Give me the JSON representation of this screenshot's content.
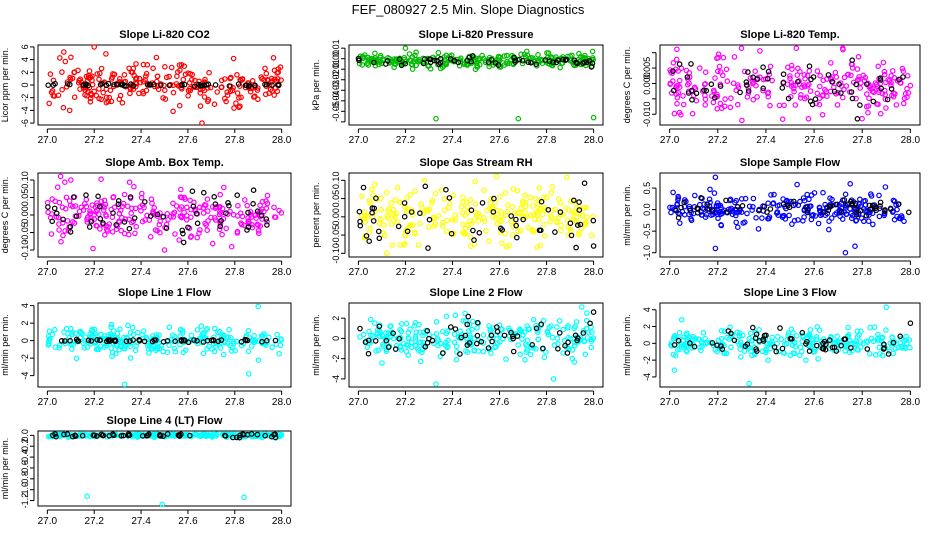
{
  "page": {
    "title": "FEF_080927  2.5 Min. Slope Diagnostics"
  },
  "chart_data": [
    {
      "type": "scatter",
      "title": "Slope Li-820 CO2",
      "ylabel": "Licor ppm per min.",
      "xlim": [
        26.96,
        28.04
      ],
      "xticks": [
        27.0,
        27.2,
        27.4,
        27.6,
        27.8,
        28.0
      ],
      "ylim": [
        -6.3,
        6.3
      ],
      "yticks": [
        -6,
        -4,
        -2,
        0,
        2,
        4,
        6
      ],
      "ytick_labels": [
        "-6",
        "-4",
        "-2",
        "0",
        "2",
        "4",
        "6"
      ],
      "series": [
        {
          "color": "#ff0000",
          "n": 260,
          "center": 0.0,
          "spread": 1.6,
          "outliers": [
            [
              27.07,
              5.2
            ],
            [
              27.2,
              6.0
            ],
            [
              27.66,
              -6.0
            ],
            [
              27.25,
              4.9
            ]
          ]
        },
        {
          "color": "#000000",
          "n": 55,
          "center": 0.0,
          "spread": 0.12,
          "outliers": []
        }
      ]
    },
    {
      "type": "scatter",
      "title": "Slope Li-820 Pressure",
      "ylabel": "kPa per min.",
      "xlim": [
        26.96,
        28.04
      ],
      "xticks": [
        27.0,
        27.2,
        27.4,
        27.6,
        27.8,
        28.0
      ],
      "ylim": [
        -0.063,
        0.013
      ],
      "yticks": [
        -0.06,
        -0.05,
        -0.04,
        -0.03,
        -0.02,
        -0.01,
        0.0,
        0.01
      ],
      "ytick_labels": [
        "",
        "-0.05",
        "-0.04",
        "-0.03",
        "-0.02",
        "-0.01",
        "0.00",
        "0.01"
      ],
      "series": [
        {
          "color": "#00bb00",
          "n": 260,
          "center": -0.002,
          "spread": 0.003,
          "outliers": [
            [
              27.33,
              -0.057
            ],
            [
              27.68,
              -0.057
            ],
            [
              28.0,
              -0.056
            ],
            [
              27.2,
              0.01
            ]
          ]
        },
        {
          "color": "#000000",
          "n": 55,
          "center": -0.002,
          "spread": 0.002,
          "outliers": []
        }
      ]
    },
    {
      "type": "scatter",
      "title": "Slope Li-820 Temp.",
      "ylabel": "degrees C per min.",
      "xlim": [
        26.96,
        28.04
      ],
      "xticks": [
        27.0,
        27.2,
        27.4,
        27.6,
        27.8,
        28.0
      ],
      "ylim": [
        -0.0135,
        0.0125
      ],
      "yticks": [
        -0.01,
        -0.005,
        0.0,
        0.005,
        0.01
      ],
      "ytick_labels": [
        "-0.010",
        "",
        "0.000",
        "0.005",
        ""
      ],
      "series": [
        {
          "color": "#ff00ff",
          "n": 260,
          "center": 0.0,
          "spread": 0.0045,
          "outliers": [
            [
              27.72,
              0.011
            ],
            [
              27.3,
              -0.012
            ]
          ]
        },
        {
          "color": "#000000",
          "n": 55,
          "center": 0.0,
          "spread": 0.004,
          "outliers": [
            [
              27.78,
              -0.0115
            ]
          ]
        }
      ]
    },
    {
      "type": "scatter",
      "title": "Slope Amb. Box Temp.",
      "ylabel": "degrees C per min.",
      "xlim": [
        26.96,
        28.04
      ],
      "xticks": [
        27.0,
        27.2,
        27.4,
        27.6,
        27.8,
        28.0
      ],
      "ylim": [
        -0.12,
        0.12
      ],
      "yticks": [
        -0.1,
        -0.05,
        0.0,
        0.05,
        0.1
      ],
      "ytick_labels": [
        "-0.10",
        "-0.05",
        "0.00",
        "0.05",
        "0.10"
      ],
      "series": [
        {
          "color": "#ff00ff",
          "n": 260,
          "center": 0.0,
          "spread": 0.035,
          "outliers": [
            [
              27.1,
              0.1
            ],
            [
              27.5,
              -0.1
            ]
          ]
        },
        {
          "color": "#000000",
          "n": 55,
          "center": 0.0,
          "spread": 0.035,
          "outliers": []
        }
      ]
    },
    {
      "type": "scatter",
      "title": "Slope Gas Stream RH",
      "ylabel": "percent per min.",
      "xlim": [
        26.96,
        28.04
      ],
      "xticks": [
        27.0,
        27.2,
        27.4,
        27.6,
        27.8,
        28.0
      ],
      "ylim": [
        -0.11,
        0.12
      ],
      "yticks": [
        -0.1,
        -0.05,
        0.0,
        0.05,
        0.1
      ],
      "ytick_labels": [
        "-0.10",
        "-0.05",
        "0.00",
        "0.05",
        "0.10"
      ],
      "series": [
        {
          "color": "#ffff00",
          "n": 260,
          "center": 0.0,
          "spread": 0.035,
          "outliers": [
            [
              27.28,
              0.1
            ],
            [
              27.12,
              -0.1
            ]
          ]
        },
        {
          "color": "#000000",
          "n": 55,
          "center": 0.0,
          "spread": 0.035,
          "outliers": [
            [
              28.0,
              -0.08
            ]
          ]
        }
      ]
    },
    {
      "type": "scatter",
      "title": "Slope Sample Flow",
      "ylabel": "ml/min per min.",
      "xlim": [
        26.96,
        28.04
      ],
      "xticks": [
        27.0,
        27.2,
        27.4,
        27.6,
        27.8,
        28.0
      ],
      "ylim": [
        -1.1,
        0.85
      ],
      "yticks": [
        -1.0,
        -0.5,
        0.0,
        0.5
      ],
      "ytick_labels": [
        "-1.0",
        "-0.5",
        "0.0",
        "0.5"
      ],
      "series": [
        {
          "color": "#0000ff",
          "n": 260,
          "center": 0.0,
          "spread": 0.18,
          "outliers": [
            [
              27.19,
              -0.9
            ],
            [
              27.73,
              -1.0
            ],
            [
              27.77,
              -0.85
            ],
            [
              27.19,
              0.75
            ],
            [
              27.75,
              0.6
            ]
          ]
        },
        {
          "color": "#000000",
          "n": 55,
          "center": 0.05,
          "spread": 0.1,
          "outliers": []
        }
      ]
    },
    {
      "type": "scatter",
      "title": "Slope Line 1 Flow",
      "ylabel": "ml/min per min.",
      "xlim": [
        26.96,
        28.04
      ],
      "xticks": [
        27.0,
        27.2,
        27.4,
        27.6,
        27.8,
        28.0
      ],
      "ylim": [
        -5.3,
        4.3
      ],
      "yticks": [
        -4,
        -2,
        0,
        2,
        4
      ],
      "ytick_labels": [
        "-4",
        "-2",
        "0",
        "2",
        "4"
      ],
      "series": [
        {
          "color": "#00ffff",
          "n": 260,
          "center": 0.0,
          "spread": 0.8,
          "outliers": [
            [
              27.33,
              -5.0
            ],
            [
              27.9,
              3.9
            ],
            [
              27.86,
              -3.8
            ]
          ]
        },
        {
          "color": "#000000",
          "n": 55,
          "center": 0.0,
          "spread": 0.08,
          "outliers": []
        }
      ]
    },
    {
      "type": "scatter",
      "title": "Slope Line 2 Flow",
      "ylabel": "ml/min per min.",
      "xlim": [
        26.96,
        28.04
      ],
      "xticks": [
        27.0,
        27.2,
        27.4,
        27.6,
        27.8,
        28.0
      ],
      "ylim": [
        -4.8,
        3.5
      ],
      "yticks": [
        -4,
        -2,
        0,
        2
      ],
      "ytick_labels": [
        "-4",
        "-2",
        "0",
        "2"
      ],
      "series": [
        {
          "color": "#00ffff",
          "n": 260,
          "center": 0.0,
          "spread": 0.9,
          "outliers": [
            [
              27.33,
              -4.5
            ],
            [
              27.83,
              -4.0
            ],
            [
              27.95,
              3.1
            ]
          ]
        },
        {
          "color": "#000000",
          "n": 55,
          "center": 0.0,
          "spread": 0.9,
          "outliers": [
            [
              28.0,
              2.6
            ]
          ]
        }
      ]
    },
    {
      "type": "scatter",
      "title": "Slope Line 3 Flow",
      "ylabel": "ml/min per min.",
      "xlim": [
        26.96,
        28.04
      ],
      "xticks": [
        27.0,
        27.2,
        27.4,
        27.6,
        27.8,
        28.0
      ],
      "ylim": [
        -5.2,
        4.8
      ],
      "yticks": [
        -4,
        -2,
        0,
        2,
        4
      ],
      "ytick_labels": [
        "-4",
        "-2",
        "0",
        "2",
        "4"
      ],
      "series": [
        {
          "color": "#00ffff",
          "n": 260,
          "center": 0.0,
          "spread": 0.8,
          "outliers": [
            [
              27.33,
              -4.8
            ],
            [
              27.9,
              4.3
            ],
            [
              27.02,
              -3.2
            ],
            [
              27.05,
              2.8
            ]
          ]
        },
        {
          "color": "#000000",
          "n": 55,
          "center": 0.0,
          "spread": 0.8,
          "outliers": [
            [
              28.0,
              2.4
            ]
          ]
        }
      ]
    },
    {
      "type": "scatter",
      "title": "Slope Line 4 (LT) Flow",
      "ylabel": "ml/min per min.",
      "xlim": [
        26.96,
        28.04
      ],
      "xticks": [
        27.0,
        27.2,
        27.4,
        27.6,
        27.8,
        28.0
      ],
      "ylim": [
        -1.3,
        0.08
      ],
      "yticks": [
        -1.2,
        -1.0,
        -0.8,
        -0.6,
        -0.4,
        -0.2,
        0.0
      ],
      "ytick_labels": [
        "-1.2",
        "-1.0",
        "-0.8",
        "-0.6",
        "-0.4",
        "-0.2",
        "0.0"
      ],
      "series": [
        {
          "color": "#00ffff",
          "n": 260,
          "center": 0.0,
          "spread": 0.015,
          "outliers": [
            [
              27.17,
              -1.12
            ],
            [
              27.84,
              -1.14
            ],
            [
              27.49,
              -1.27
            ]
          ]
        },
        {
          "color": "#000000",
          "n": 55,
          "center": 0.0,
          "spread": 0.02,
          "outliers": []
        }
      ]
    }
  ]
}
